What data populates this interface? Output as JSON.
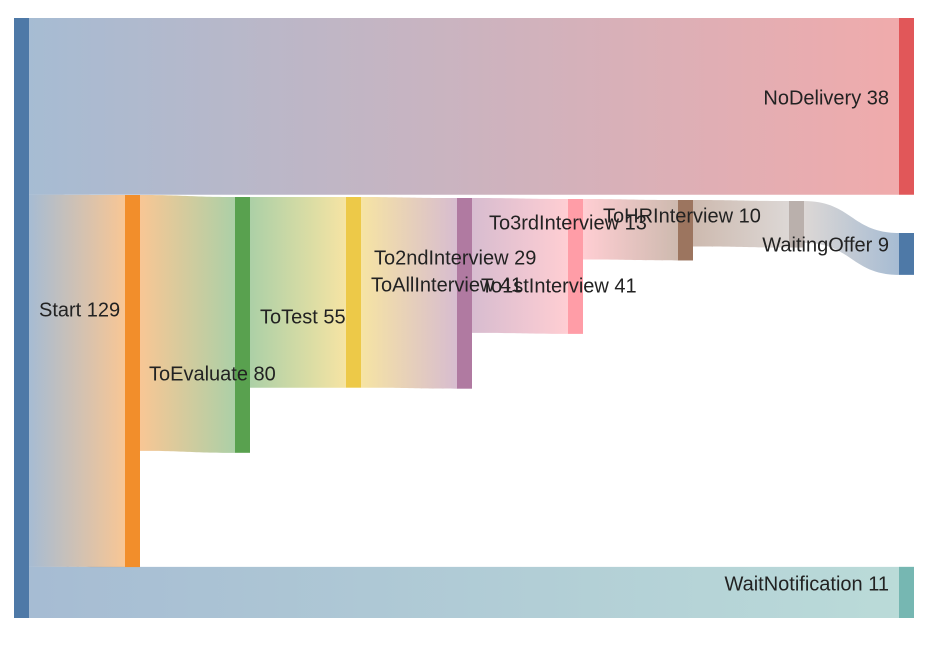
{
  "chart_data": {
    "type": "sankey",
    "nodes": [
      {
        "name": "Start",
        "value": 129,
        "color": "#4e79a7"
      },
      {
        "name": "ToEvaluate",
        "value": 80,
        "color": "#f28e2b"
      },
      {
        "name": "ToTest",
        "value": 55,
        "color": "#59a14f"
      },
      {
        "name": "ToAllInterview",
        "value": 41,
        "color": "#edc948"
      },
      {
        "name": "ToFirstInterview",
        "value": 41,
        "color": "#b07aa1"
      },
      {
        "name": "To2ndInterview",
        "value": 29,
        "color": "#ff9da7"
      },
      {
        "name": "To3rdInterview",
        "value": 13,
        "color": "#9c755f"
      },
      {
        "name": "ToHRInterview",
        "value": 10,
        "color": "#bab0ac"
      },
      {
        "name": "WaitingOffer",
        "value": 9,
        "color": "#4e79a7"
      },
      {
        "name": "NoDelivery",
        "value": 38,
        "color": "#e15759"
      },
      {
        "name": "WaitNotification",
        "value": 11,
        "color": "#76b7b2"
      }
    ],
    "labels": [
      {
        "node": "Start",
        "text": "Start 129"
      },
      {
        "node": "ToEvaluate",
        "text": "ToEvaluate 80"
      },
      {
        "node": "ToTest",
        "text": "ToTest 55"
      },
      {
        "node": "ToAllInterview",
        "text": "ToAllInterview 41"
      },
      {
        "node": "ToFirstInterview",
        "text": "To1stInterview 41"
      },
      {
        "node": "To2ndInterview",
        "text": "To2ndInterview 29"
      },
      {
        "node": "To3rdInterview",
        "text": "To3rdInterview 13"
      },
      {
        "node": "ToHRInterview",
        "text": "ToHRInterview 10"
      },
      {
        "node": "WaitingOffer",
        "text": "WaitingOffer 9"
      },
      {
        "node": "NoDelivery",
        "text": "NoDelivery 38"
      },
      {
        "node": "WaitNotification",
        "text": "WaitNotification 11"
      }
    ],
    "links": [
      {
        "source": "Start",
        "target": "NoDelivery",
        "value": 38
      },
      {
        "source": "Start",
        "target": "ToEvaluate",
        "value": 80
      },
      {
        "source": "Start",
        "target": "WaitNotification",
        "value": 11
      },
      {
        "source": "ToEvaluate",
        "target": "ToTest",
        "value": 55
      },
      {
        "source": "ToTest",
        "target": "ToAllInterview",
        "value": 41
      },
      {
        "source": "ToAllInterview",
        "target": "ToFirstInterview",
        "value": 41
      },
      {
        "source": "ToFirstInterview",
        "target": "To2ndInterview",
        "value": 29
      },
      {
        "source": "To2ndInterview",
        "target": "To3rdInterview",
        "value": 13
      },
      {
        "source": "To3rdInterview",
        "target": "ToHRInterview",
        "value": 10
      },
      {
        "source": "ToHRInterview",
        "target": "WaitingOffer",
        "value": 9
      }
    ]
  }
}
